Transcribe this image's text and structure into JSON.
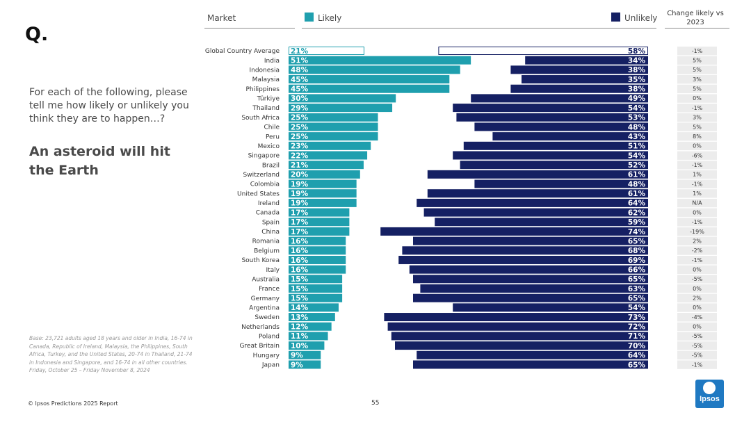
{
  "slide": {
    "q_mark": "Q.",
    "intro": "For each of the following, please tell me how likely or unlikely you think they are to happen…?",
    "headline": "An asteroid will hit the Earth",
    "base_note": "Base: 23,721 adults aged 18 years and older in India, 16-74 in Canada, Republic of Ireland, Malaysia, the Philippines, South Africa, Turkey, and the United States, 20-74 in Thailand, 21-74 in Indonesia and Singapore, and 16-74 in all other countries. Friday, October 25 – Friday November 8, 2024",
    "footer_left": "© Ipsos Predictions 2025 Report",
    "page_number": "55",
    "logo_text": "Ipsos"
  },
  "headers": {
    "market": "Market",
    "likely": "Likely",
    "unlikely": "Unlikely",
    "change": "Change likely vs 2023"
  },
  "colors": {
    "likely": "#1f9fae",
    "unlikely": "#152063",
    "change_bg": "#ececec"
  },
  "chart_data": {
    "type": "bar",
    "orientation": "horizontal",
    "categories": [
      "Global Country Average",
      "India",
      "Indonesia",
      "Malaysia",
      "Philippines",
      "Türkiye",
      "Thailand",
      "South Africa",
      "Chile",
      "Peru",
      "Mexico",
      "Singapore",
      "Brazil",
      "Switzerland",
      "Colombia",
      "United States",
      "Ireland",
      "Canada",
      "Spain",
      "China",
      "Romania",
      "Belgium",
      "South Korea",
      "Italy",
      "Australia",
      "France",
      "Germany",
      "Argentina",
      "Sweden",
      "Netherlands",
      "Poland",
      "Great Britain",
      "Hungary",
      "Japan"
    ],
    "series": [
      {
        "name": "Likely",
        "values": [
          21,
          51,
          48,
          45,
          45,
          30,
          29,
          25,
          25,
          25,
          23,
          22,
          21,
          20,
          19,
          19,
          19,
          17,
          17,
          17,
          16,
          16,
          16,
          16,
          15,
          15,
          15,
          14,
          13,
          12,
          11,
          10,
          9,
          9
        ]
      },
      {
        "name": "Unlikely",
        "values": [
          58,
          34,
          38,
          35,
          38,
          49,
          54,
          53,
          48,
          43,
          51,
          54,
          52,
          61,
          48,
          61,
          64,
          62,
          59,
          74,
          65,
          68,
          69,
          66,
          65,
          63,
          65,
          54,
          73,
          72,
          71,
          70,
          64,
          65
        ]
      }
    ],
    "change_likely_vs_2023": [
      "-1%",
      "5%",
      "5%",
      "3%",
      "5%",
      "0%",
      "-1%",
      "3%",
      "5%",
      "8%",
      "0%",
      "-6%",
      "-1%",
      "1%",
      "-1%",
      "1%",
      "N/A",
      "0%",
      "-1%",
      "-19%",
      "2%",
      "-2%",
      "-1%",
      "0%",
      "-5%",
      "0%",
      "2%",
      "0%",
      "-4%",
      "0%",
      "-5%",
      "-5%",
      "-5%",
      "-1%"
    ],
    "value_suffix": "%",
    "xlim": [
      0,
      100
    ]
  }
}
